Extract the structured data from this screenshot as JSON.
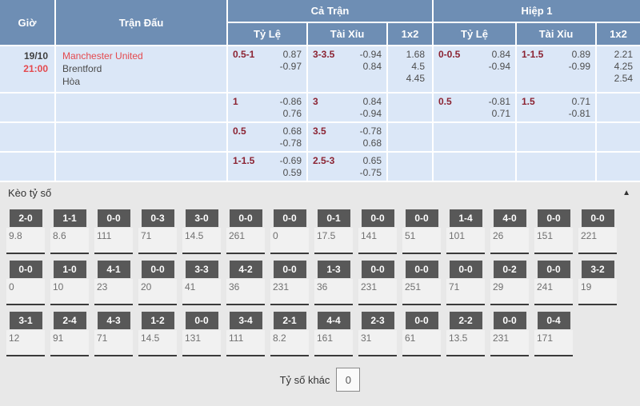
{
  "colors": {
    "header_blue": "#6e8eb4",
    "row_blue": "#dbe7f7",
    "handicap_maroon": "#8b2332",
    "team_red": "#e4494e",
    "section_gray": "#e8e8e8",
    "badge_gray": "#585858"
  },
  "odds_table": {
    "header": {
      "time": "Giờ",
      "match": "Trận Đấu",
      "full_time": "Cả Trận",
      "first_half": "Hiệp 1",
      "sub": [
        "Tỷ Lệ",
        "Tài Xỉu",
        "1x2"
      ]
    },
    "rows": [
      {
        "cells": [
          {
            "hc": "0.5-1",
            "odds": [
              "0.87",
              "-0.97"
            ]
          },
          {
            "hc": "3-3.5",
            "odds": [
              "-0.94",
              "0.84"
            ]
          },
          {
            "x12": [
              "1.68",
              "4.5",
              "4.45"
            ]
          },
          {
            "hc": "0-0.5",
            "odds": [
              "0.84",
              "-0.94"
            ]
          },
          {
            "hc": "1-1.5",
            "odds": [
              "0.89",
              "-0.99"
            ]
          },
          {
            "x12": [
              "2.21",
              "4.25",
              "2.54"
            ]
          }
        ]
      },
      {
        "cells": [
          {
            "hc": "1",
            "odds": [
              "-0.86",
              "0.76"
            ]
          },
          {
            "hc": "3",
            "odds": [
              "0.84",
              "-0.94"
            ]
          },
          {},
          {
            "hc": "0.5",
            "odds": [
              "-0.81",
              "0.71"
            ]
          },
          {
            "hc": "1.5",
            "odds": [
              "0.71",
              "-0.81"
            ]
          },
          {}
        ]
      },
      {
        "cells": [
          {
            "hc": "0.5",
            "odds": [
              "0.68",
              "-0.78"
            ]
          },
          {
            "hc": "3.5",
            "odds": [
              "-0.78",
              "0.68"
            ]
          },
          {},
          {},
          {},
          {}
        ]
      },
      {
        "cells": [
          {
            "hc": "1-1.5",
            "odds": [
              "-0.69",
              "0.59"
            ]
          },
          {
            "hc": "2.5-3",
            "odds": [
              "0.65",
              "-0.75"
            ]
          },
          {},
          {},
          {},
          {}
        ]
      }
    ]
  },
  "match": {
    "date": "19/10",
    "time": "21:00",
    "home": "Manchester United",
    "away": "Brentford",
    "draw": "Hòa"
  },
  "score_section": {
    "title": "Kèo tỷ số",
    "collapse_icon": "▲",
    "rows": [
      [
        {
          "score": "2-0",
          "odds": "9.8"
        },
        {
          "score": "1-1",
          "odds": "8.6"
        },
        {
          "score": "0-0",
          "odds": "111"
        },
        {
          "score": "0-3",
          "odds": "71"
        },
        {
          "score": "3-0",
          "odds": "14.5"
        },
        {
          "score": "0-0",
          "odds": "261"
        },
        {
          "score": "0-0",
          "odds": "0"
        },
        {
          "score": "0-1",
          "odds": "17.5"
        },
        {
          "score": "0-0",
          "odds": "141"
        },
        {
          "score": "0-0",
          "odds": "51"
        },
        {
          "score": "1-4",
          "odds": "101"
        },
        {
          "score": "4-0",
          "odds": "26"
        },
        {
          "score": "0-0",
          "odds": "151"
        },
        {
          "score": "0-0",
          "odds": "221"
        }
      ],
      [
        {
          "score": "0-0",
          "odds": "0"
        },
        {
          "score": "1-0",
          "odds": "10"
        },
        {
          "score": "4-1",
          "odds": "23"
        },
        {
          "score": "0-0",
          "odds": "20"
        },
        {
          "score": "3-3",
          "odds": "41"
        },
        {
          "score": "4-2",
          "odds": "36"
        },
        {
          "score": "0-0",
          "odds": "231"
        },
        {
          "score": "1-3",
          "odds": "36"
        },
        {
          "score": "0-0",
          "odds": "231"
        },
        {
          "score": "0-0",
          "odds": "251"
        },
        {
          "score": "0-0",
          "odds": "71"
        },
        {
          "score": "0-2",
          "odds": "29"
        },
        {
          "score": "0-0",
          "odds": "241"
        },
        {
          "score": "3-2",
          "odds": "19"
        }
      ],
      [
        {
          "score": "3-1",
          "odds": "12"
        },
        {
          "score": "2-4",
          "odds": "91"
        },
        {
          "score": "4-3",
          "odds": "71"
        },
        {
          "score": "1-2",
          "odds": "14.5"
        },
        {
          "score": "0-0",
          "odds": "131"
        },
        {
          "score": "3-4",
          "odds": "111"
        },
        {
          "score": "2-1",
          "odds": "8.2"
        },
        {
          "score": "4-4",
          "odds": "161"
        },
        {
          "score": "2-3",
          "odds": "31"
        },
        {
          "score": "0-0",
          "odds": "61"
        },
        {
          "score": "2-2",
          "odds": "13.5"
        },
        {
          "score": "0-0",
          "odds": "231"
        },
        {
          "score": "0-4",
          "odds": "171"
        }
      ]
    ],
    "other_label": "Tỷ số khác",
    "other_value": "0"
  }
}
